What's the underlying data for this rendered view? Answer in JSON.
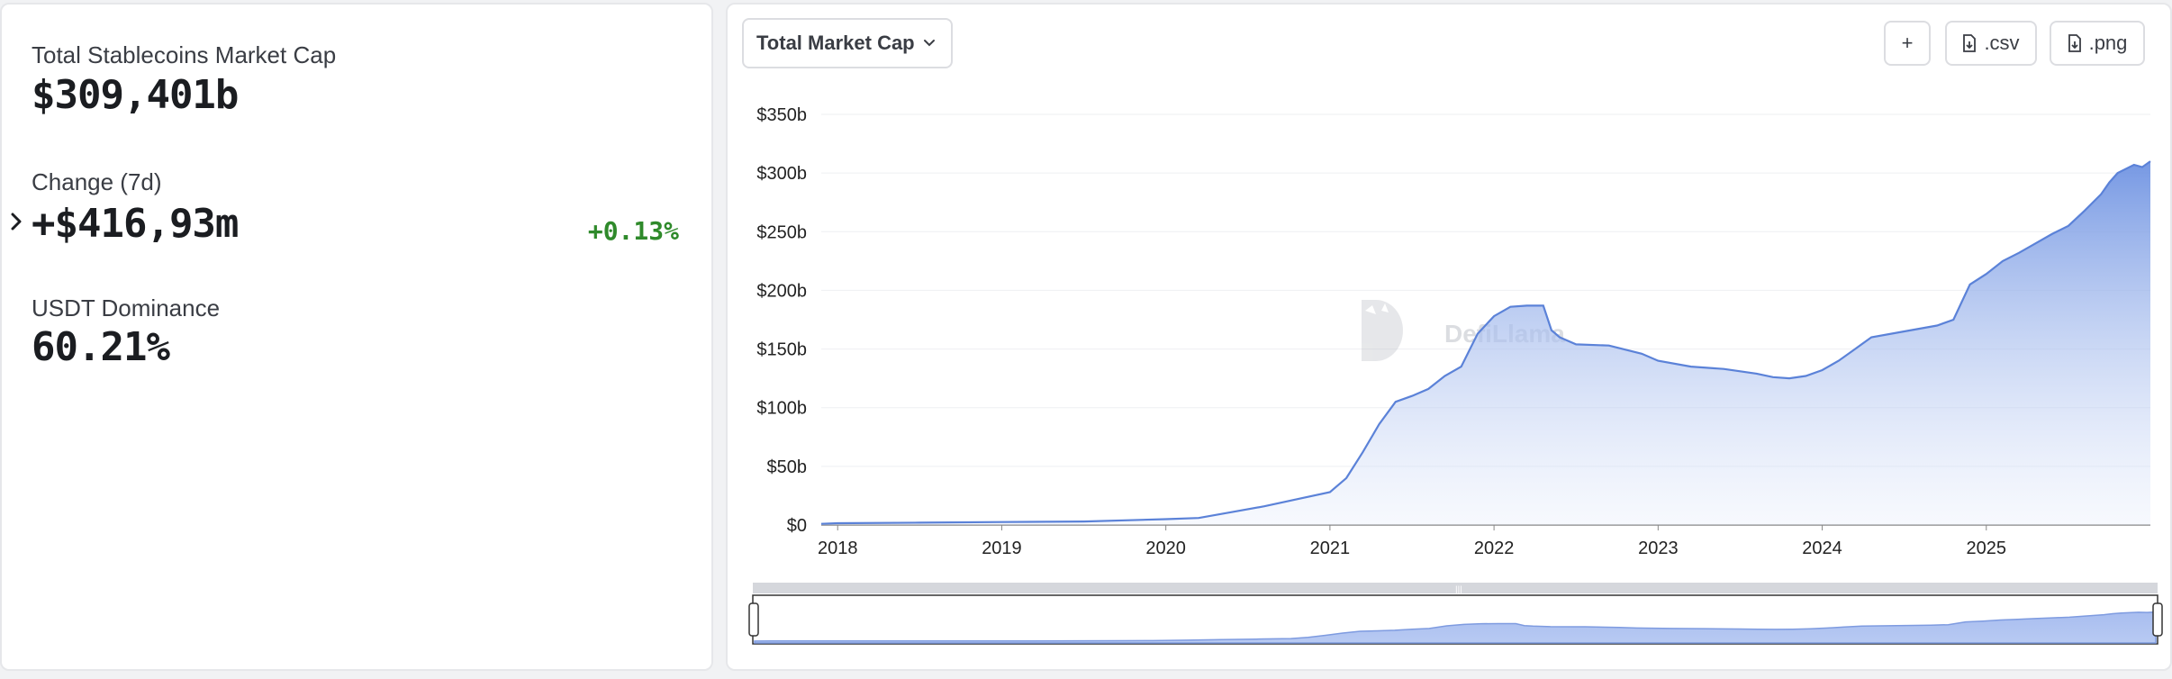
{
  "stats": {
    "market_cap_label": "Total Stablecoins Market Cap",
    "market_cap_value": "$309,401b",
    "change_label": "Change (7d)",
    "change_value": "+$416,93m",
    "change_pct": "+0.13%",
    "dominance_label": "USDT Dominance",
    "dominance_value": "60.21%"
  },
  "toolbar": {
    "dropdown_label": "Total Market Cap",
    "add_label": "+",
    "csv_label": ".csv",
    "png_label": ".png"
  },
  "watermark": "DefiLlama",
  "colors": {
    "line": "#5b82d8",
    "area_top": "#7397e3",
    "positive": "#2f8a2b"
  },
  "chart_data": {
    "type": "area",
    "title": "",
    "xlabel": "",
    "ylabel": "",
    "ylim": [
      0,
      350
    ],
    "y_unit": "b",
    "y_ticks": [
      "$0",
      "$50b",
      "$100b",
      "$150b",
      "$200b",
      "$250b",
      "$300b",
      "$350b"
    ],
    "x_ticks": [
      "2018",
      "2019",
      "2020",
      "2021",
      "2022",
      "2023",
      "2024",
      "2025"
    ],
    "xlim": [
      2017.9,
      2026.0
    ],
    "grid": true,
    "series": [
      {
        "x": [
          2017.9,
          2018.0,
          2018.5,
          2019.0,
          2019.5,
          2020.0,
          2020.2,
          2020.4,
          2020.6,
          2020.8,
          2021.0,
          2021.1,
          2021.2,
          2021.3,
          2021.4,
          2021.5,
          2021.6,
          2021.7,
          2021.8,
          2021.9,
          2022.0,
          2022.1,
          2022.2,
          2022.3,
          2022.35,
          2022.4,
          2022.5,
          2022.7,
          2022.9,
          2023.0,
          2023.2,
          2023.4,
          2023.6,
          2023.7,
          2023.8,
          2023.9,
          2024.0,
          2024.1,
          2024.2,
          2024.3,
          2024.5,
          2024.7,
          2024.8,
          2024.9,
          2025.0,
          2025.1,
          2025.2,
          2025.3,
          2025.4,
          2025.5,
          2025.6,
          2025.7,
          2025.75,
          2025.8,
          2025.9,
          2025.95,
          2026.0
        ],
        "values": [
          1,
          1.5,
          2,
          2.5,
          3,
          5,
          6,
          11,
          16,
          22,
          28,
          40,
          62,
          86,
          105,
          110,
          116,
          127,
          135,
          163,
          178,
          186,
          187,
          187,
          166,
          160,
          154,
          153,
          146,
          140,
          135,
          133,
          129,
          126,
          125,
          127,
          132,
          140,
          150,
          160,
          165,
          170,
          175,
          205,
          214,
          225,
          232,
          240,
          248,
          255,
          268,
          282,
          292,
          300,
          307,
          305,
          310
        ]
      }
    ]
  }
}
